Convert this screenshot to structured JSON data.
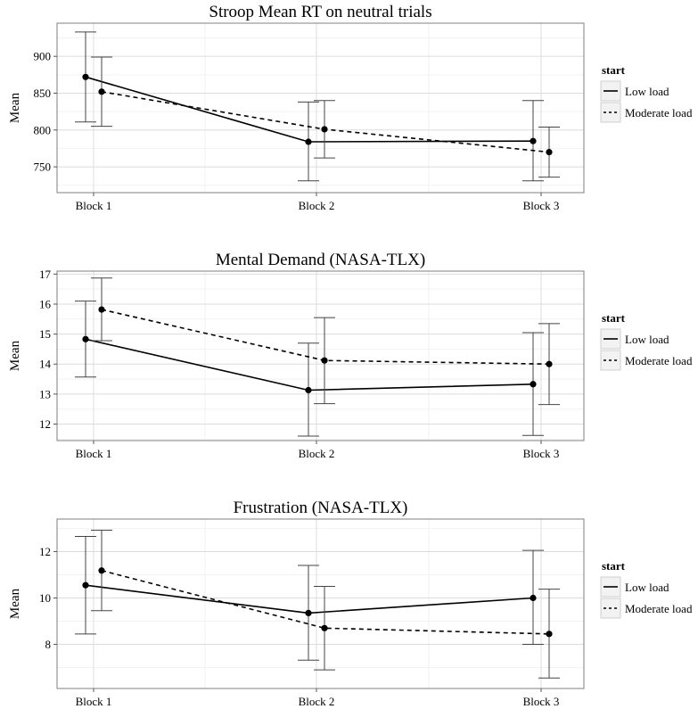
{
  "chart_data": [
    {
      "type": "line",
      "title": "Stroop Mean RT on neutral trials",
      "xlabel": "",
      "ylabel": "Mean",
      "categories": [
        "Block 1",
        "Block 2",
        "Block 3"
      ],
      "ylim": [
        715,
        945
      ],
      "yticks": [
        750,
        800,
        850,
        900
      ],
      "grid": true,
      "legend_title": "start",
      "legend_position": "right",
      "series": [
        {
          "name": "Low load",
          "dash": "solid",
          "values": [
            872,
            784,
            785
          ],
          "lower": [
            811,
            731,
            731
          ],
          "upper": [
            933,
            838,
            840
          ]
        },
        {
          "name": "Moderate load",
          "dash": "dashed",
          "values": [
            852,
            801,
            770
          ],
          "lower": [
            805,
            762,
            736
          ],
          "upper": [
            899,
            840,
            804
          ]
        }
      ]
    },
    {
      "type": "line",
      "title": "Mental Demand (NASA-TLX)",
      "xlabel": "",
      "ylabel": "Mean",
      "categories": [
        "Block 1",
        "Block 2",
        "Block 3"
      ],
      "ylim": [
        11.45,
        17.1
      ],
      "yticks": [
        12,
        13,
        14,
        15,
        16,
        17
      ],
      "grid": true,
      "legend_title": "start",
      "legend_position": "right",
      "series": [
        {
          "name": "Low load",
          "dash": "solid",
          "values": [
            14.83,
            13.13,
            13.33
          ],
          "lower": [
            13.57,
            11.6,
            11.62
          ],
          "upper": [
            16.1,
            14.7,
            15.05
          ]
        },
        {
          "name": "Moderate load",
          "dash": "dashed",
          "values": [
            15.82,
            14.12,
            14.0
          ],
          "lower": [
            14.78,
            12.68,
            12.65
          ],
          "upper": [
            16.87,
            15.55,
            15.35
          ]
        }
      ]
    },
    {
      "type": "line",
      "title": "Frustration (NASA-TLX)",
      "xlabel": "",
      "ylabel": "Mean",
      "categories": [
        "Block 1",
        "Block 2",
        "Block 3"
      ],
      "ylim": [
        6.1,
        13.4
      ],
      "yticks": [
        8,
        10,
        12
      ],
      "grid": true,
      "legend_title": "start",
      "legend_position": "right",
      "series": [
        {
          "name": "Low load",
          "dash": "solid",
          "values": [
            10.55,
            9.35,
            10.0
          ],
          "lower": [
            8.45,
            7.32,
            8.0
          ],
          "upper": [
            12.65,
            11.4,
            12.05
          ]
        },
        {
          "name": "Moderate load",
          "dash": "dashed",
          "values": [
            11.18,
            8.7,
            8.45
          ],
          "lower": [
            9.45,
            6.9,
            6.55
          ],
          "upper": [
            12.92,
            10.5,
            10.38
          ]
        }
      ]
    }
  ]
}
